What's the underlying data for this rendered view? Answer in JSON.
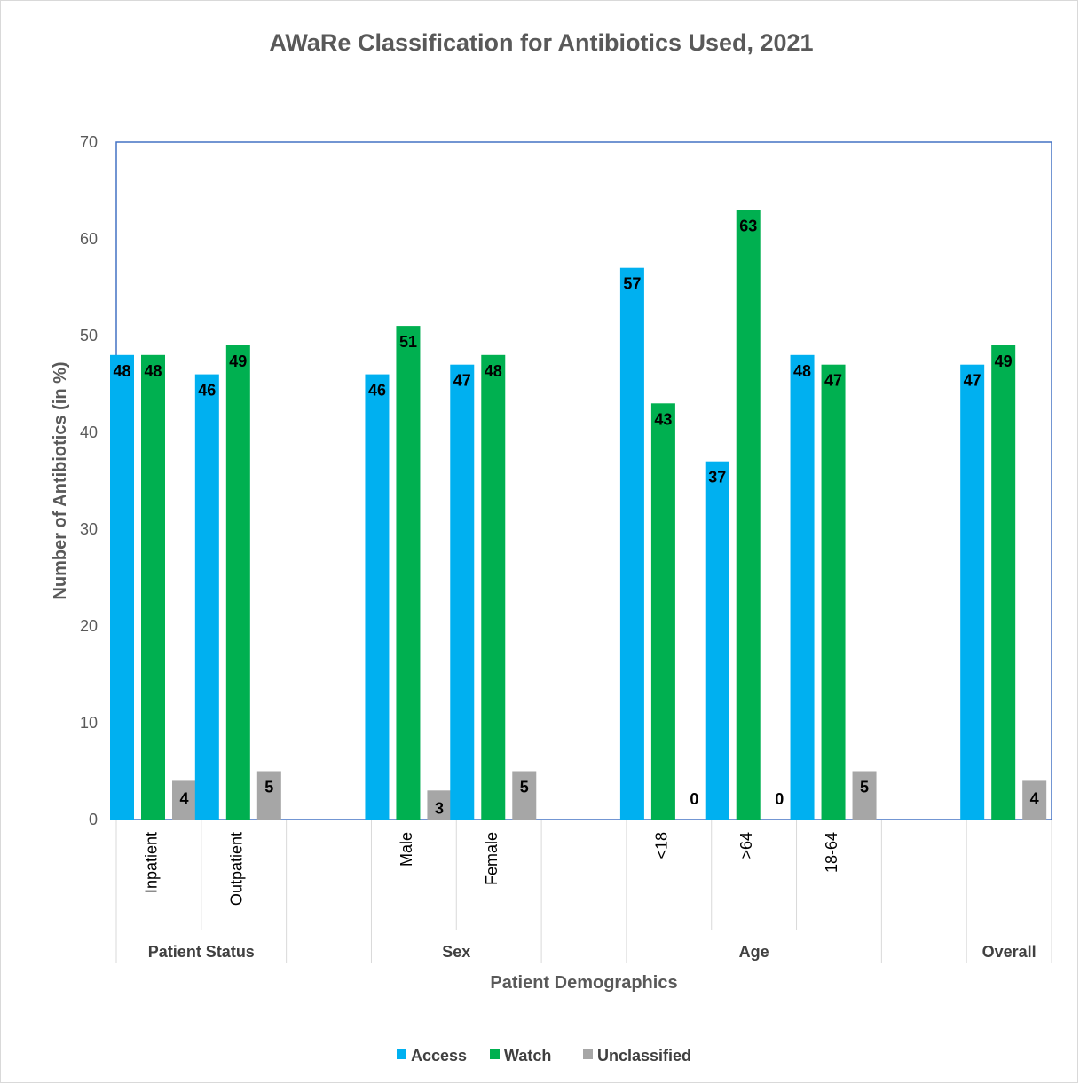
{
  "chart_data": {
    "type": "bar",
    "title": "AWaRe Classification for Antibiotics Used, 2021",
    "xlabel": "Patient Demographics",
    "ylabel": "Number of Antibiotics (in %)",
    "ylim": [
      0,
      70
    ],
    "yticks": [
      "0",
      "10",
      "20",
      "30",
      "40",
      "50",
      "60",
      "70"
    ],
    "groups": [
      {
        "label": "Patient Status",
        "categories": [
          "Inpatient",
          "Outpatient"
        ]
      },
      {
        "label": "Sex",
        "categories": [
          "Male",
          "Female"
        ]
      },
      {
        "label": "Age",
        "categories": [
          "<18",
          ">64",
          "18-64"
        ]
      },
      {
        "label": "Overall",
        "categories": [
          ""
        ]
      }
    ],
    "series": [
      {
        "name": "Access",
        "color": "#00b0f0",
        "values": [
          48,
          46,
          46,
          47,
          57,
          37,
          48,
          47
        ]
      },
      {
        "name": "Watch",
        "color": "#00b050",
        "values": [
          48,
          49,
          51,
          48,
          43,
          63,
          47,
          49
        ]
      },
      {
        "name": "Unclassified",
        "color": "#a6a6a6",
        "values": [
          4,
          5,
          3,
          5,
          0,
          0,
          5,
          4
        ]
      }
    ],
    "legend_position": "bottom",
    "grid": false
  }
}
